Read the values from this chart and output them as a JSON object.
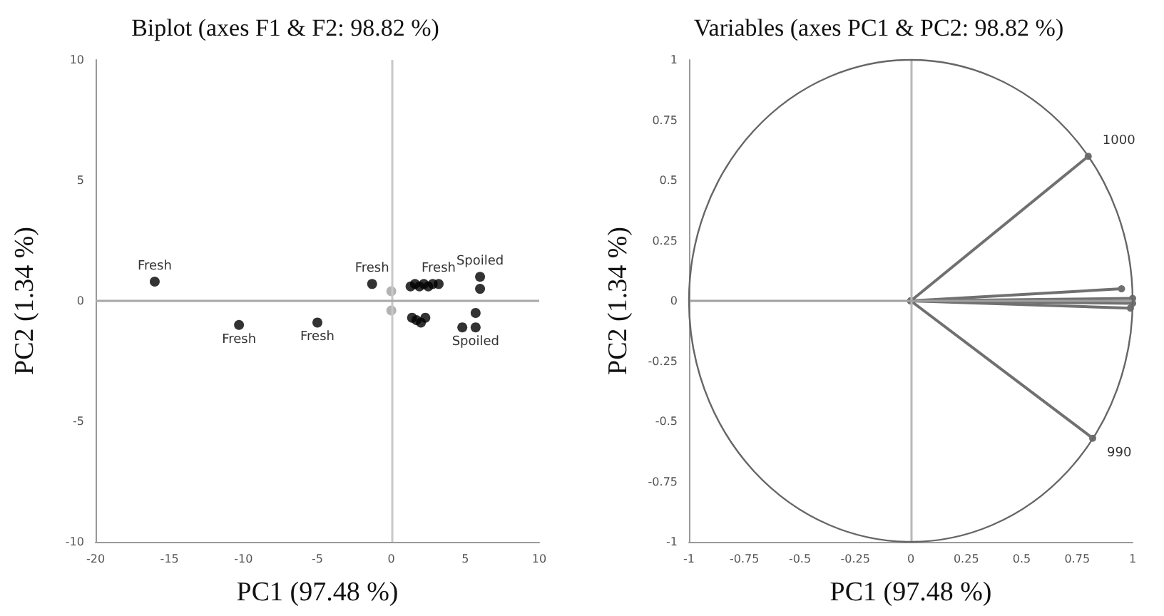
{
  "chart_data": [
    {
      "type": "scatter",
      "title": "Biplot (axes F1 & F2: 98.82 %)",
      "xlabel": "PC1 (97.48 %)",
      "ylabel": "PC2 (1.34 %)",
      "xlim": [
        -20,
        10
      ],
      "xticks": [
        -20,
        -15,
        -10,
        -5,
        0,
        5,
        10
      ],
      "ylim": [
        -10,
        10
      ],
      "yticks": [
        -10,
        -5,
        0,
        5,
        10
      ],
      "marker": "circle",
      "ref_lines": [
        {
          "axis": "x",
          "value": 0,
          "color": "#c8c8c8"
        },
        {
          "axis": "y",
          "value": 0,
          "color": "#a8a8a8"
        }
      ],
      "series": [
        {
          "color": "#000000",
          "x": [
            -16,
            -10.3,
            -5,
            -1.3,
            1.3,
            1.6,
            1.9,
            2.2,
            2.5,
            2.8,
            3.2,
            1.4,
            1.7,
            2.0,
            2.3,
            6,
            6,
            5.7,
            4.8,
            5.7
          ],
          "values": [
            0.8,
            -1,
            -0.9,
            0.7,
            0.6,
            0.7,
            0.6,
            0.7,
            0.6,
            0.7,
            0.7,
            -0.7,
            -0.8,
            -0.9,
            -0.7,
            1,
            0.5,
            -0.5,
            -1.1,
            -1.1
          ]
        },
        {
          "color": "#a0a0a0",
          "x": [
            0,
            0
          ],
          "values": [
            0.4,
            -0.4
          ]
        }
      ],
      "annotations": [
        {
          "text": "Fresh",
          "x": -16,
          "y": 0.8
        },
        {
          "text": "Fresh",
          "x": -10.3,
          "y": -1
        },
        {
          "text": "Fresh",
          "x": -5,
          "y": -0.9
        },
        {
          "text": "Fresh",
          "x": -1.3,
          "y": 0.7
        },
        {
          "text": "Fresh",
          "x": 3.2,
          "y": 0.7
        },
        {
          "text": "Spoiled",
          "x": 6,
          "y": 1
        },
        {
          "text": "Spoiled",
          "x": 5.7,
          "y": -1.1
        }
      ]
    },
    {
      "type": "line",
      "title": "Variables (axes PC1 & PC2: 98.82 %)",
      "xlabel": "PC1 (97.48 %)",
      "ylabel": "PC2 (1.34 %)",
      "xlim": [
        -1,
        1
      ],
      "xticks": [
        -1,
        -0.75,
        -0.5,
        -0.25,
        0,
        0.25,
        0.5,
        0.75,
        1
      ],
      "ylim": [
        -1,
        1
      ],
      "yticks": [
        -1,
        -0.75,
        -0.5,
        -0.25,
        0,
        0.25,
        0.5,
        0.75,
        1
      ],
      "marker": "circle",
      "line_style": "solid",
      "ref_lines": [
        {
          "axis": "x",
          "value": 0,
          "color": "#b8b8b8"
        },
        {
          "axis": "y",
          "value": 0,
          "color": "#a0a0a0"
        }
      ],
      "series": [
        {
          "color": "#707070",
          "x": [
            0,
            0.8
          ],
          "values": [
            0,
            0.6
          ]
        },
        {
          "color": "#707070",
          "x": [
            0,
            0.95
          ],
          "values": [
            0,
            0.05
          ]
        },
        {
          "color": "#707070",
          "x": [
            0,
            1
          ],
          "values": [
            0,
            0.01
          ]
        },
        {
          "color": "#707070",
          "x": [
            0,
            1
          ],
          "values": [
            0,
            -0.01
          ]
        },
        {
          "color": "#707070",
          "x": [
            0,
            0.99
          ],
          "values": [
            0,
            -0.03
          ]
        },
        {
          "color": "#707070",
          "x": [
            0,
            0.82
          ],
          "values": [
            0,
            -0.57
          ]
        }
      ],
      "annotations": [
        {
          "text": "1000",
          "x": 0.8,
          "y": 0.6
        },
        {
          "text": "990",
          "x": 0.82,
          "y": -0.57
        }
      ]
    }
  ]
}
